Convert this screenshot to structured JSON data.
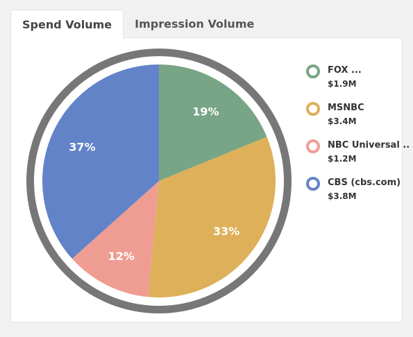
{
  "tabs": [
    {
      "label": "Spend Volume",
      "active": true
    },
    {
      "label": "Impression Volume",
      "active": false
    }
  ],
  "chart_data": {
    "type": "pie",
    "categories": [
      "FOX ...",
      "MSNBC",
      "NBC Universal ..",
      "CBS (cbs.com)"
    ],
    "values": [
      19,
      33,
      12,
      37
    ],
    "value_labels": [
      "19%",
      "33%",
      "12%",
      "37%"
    ],
    "amounts": [
      "$1.9M",
      "$3.4M",
      "$1.2M",
      "$3.8M"
    ],
    "colors": [
      "#78a585",
      "#deb059",
      "#ef9d93",
      "#6283c7"
    ],
    "ring_color": "#777777",
    "legend_position": "right"
  }
}
